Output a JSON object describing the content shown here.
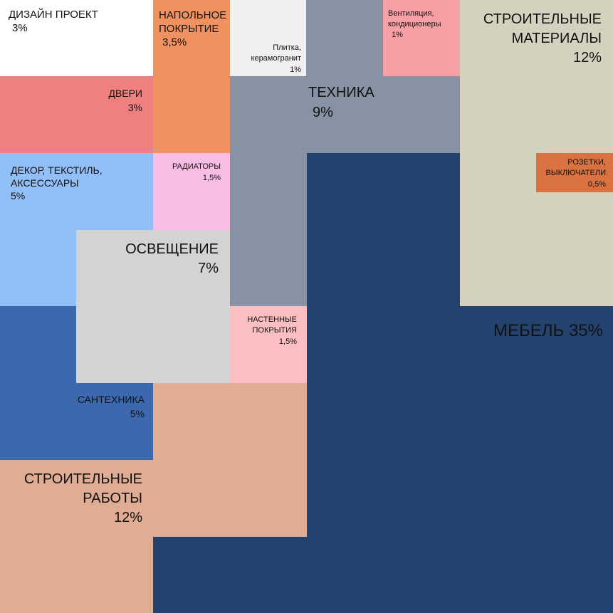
{
  "colors": {
    "white": "#ffffff",
    "coral": "#f08080",
    "orange": "#f0925f",
    "light_gray": "#f0f0f0",
    "slate": "#8792a5",
    "pink": "#f6a0a5",
    "beige": "#d4d1bf",
    "light_blue": "#93bff9",
    "pale_pink": "#f8bde3",
    "gray": "#d3d3d3",
    "mid_blue": "#3c69ad",
    "rose": "#fbbfc1",
    "peach": "#e0ac94",
    "navy": "#24426e",
    "dark_orange": "#d97141"
  },
  "segments": {
    "design": {
      "label": "ДИЗАЙН ПРОЕКТ",
      "percent": "3%"
    },
    "flooring": {
      "label_1": "НАПОЛЬНОЕ",
      "label_2": "ПОКРЫТИЕ",
      "percent": "3,5%"
    },
    "tiles": {
      "label_1": "Плитка,",
      "label_2": "керамогранит",
      "percent": "1%"
    },
    "ventilation": {
      "label_1": "Вентиляция,",
      "label_2": "кондиционеры",
      "percent": "1%"
    },
    "materials": {
      "label_1": "СТРОИТЕЛЬНЫЕ",
      "label_2": "МАТЕРИАЛЫ",
      "percent": "12%"
    },
    "doors": {
      "label": "ДВЕРИ",
      "percent": "3%"
    },
    "appliances": {
      "label": "ТЕХНИКА",
      "percent": "9%"
    },
    "decor": {
      "label_1": "ДЕКОР, ТЕКСТИЛЬ,",
      "label_2": "АКСЕССУАРЫ",
      "percent": "5%"
    },
    "radiators": {
      "label": "РАДИАТОРЫ",
      "percent": "1,5%"
    },
    "sockets": {
      "label_1": "РОЗЕТКИ,",
      "label_2": "ВЫКЛЮЧАТЕЛИ",
      "percent": "0,5%"
    },
    "lighting": {
      "label": "ОСВЕЩЕНИЕ",
      "percent": "7%"
    },
    "wall": {
      "label_1": "НАСТЕННЫЕ",
      "label_2": "ПОКРЫТИЯ",
      "percent": "1,5%"
    },
    "furniture": {
      "label": "МЕБЕЛЬ 35%"
    },
    "plumbing": {
      "label": "САНТЕХНИКА",
      "percent": "5%"
    },
    "works": {
      "label_1": "СТРОИТЕЛЬНЫЕ",
      "label_2": "РАБОТЫ",
      "percent": "12%"
    }
  }
}
